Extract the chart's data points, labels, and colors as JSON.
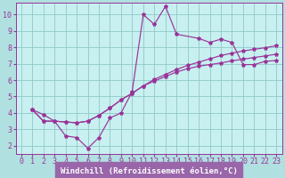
{
  "background_color": "#b0e0e0",
  "plot_bg_color": "#c8f0f0",
  "grid_color": "#90c8c8",
  "line_color": "#993399",
  "xlabel_bg_color": "#9966aa",
  "xlabel_text_color": "#ffffff",
  "tick_color": "#993399",
  "spine_color": "#993399",
  "marker": "*",
  "xlabel": "Windchill (Refroidissement éolien,°C)",
  "xlabel_fontsize": 6.5,
  "tick_fontsize": 6.0,
  "xlim": [
    -0.5,
    23.5
  ],
  "ylim": [
    1.5,
    10.7
  ],
  "xticks": [
    0,
    1,
    2,
    3,
    4,
    5,
    6,
    7,
    8,
    9,
    10,
    11,
    12,
    13,
    14,
    15,
    16,
    17,
    18,
    19,
    20,
    21,
    22,
    23
  ],
  "yticks": [
    2,
    3,
    4,
    5,
    6,
    7,
    8,
    9,
    10
  ],
  "line1_x": [
    1,
    2,
    3,
    4,
    5,
    6,
    7,
    8,
    9,
    10,
    11,
    12,
    13,
    14,
    16,
    17,
    18,
    19,
    20,
    21,
    22,
    23
  ],
  "line1_y": [
    4.2,
    3.9,
    3.5,
    2.6,
    2.5,
    1.85,
    2.5,
    3.7,
    4.0,
    5.3,
    10.0,
    9.4,
    10.5,
    8.8,
    8.55,
    8.3,
    8.5,
    8.3,
    6.95,
    6.95,
    7.15,
    7.2
  ],
  "line2_x": [
    1,
    2,
    3,
    4,
    5,
    6,
    7,
    8,
    9,
    10,
    11,
    12,
    13,
    14,
    15,
    16,
    17,
    18,
    19,
    20,
    21,
    22,
    23
  ],
  "line2_y": [
    4.2,
    3.5,
    3.5,
    3.45,
    3.4,
    3.5,
    3.85,
    4.3,
    4.8,
    5.2,
    5.65,
    6.05,
    6.35,
    6.65,
    6.9,
    7.1,
    7.3,
    7.5,
    7.65,
    7.78,
    7.88,
    7.98,
    8.1
  ],
  "line3_x": [
    1,
    2,
    3,
    4,
    5,
    6,
    7,
    8,
    9,
    10,
    11,
    12,
    13,
    14,
    15,
    16,
    17,
    18,
    19,
    20,
    21,
    22,
    23
  ],
  "line3_y": [
    4.2,
    3.5,
    3.5,
    3.45,
    3.4,
    3.5,
    3.85,
    4.3,
    4.8,
    5.2,
    5.65,
    5.95,
    6.22,
    6.5,
    6.7,
    6.85,
    6.95,
    7.05,
    7.18,
    7.28,
    7.38,
    7.48,
    7.58
  ]
}
